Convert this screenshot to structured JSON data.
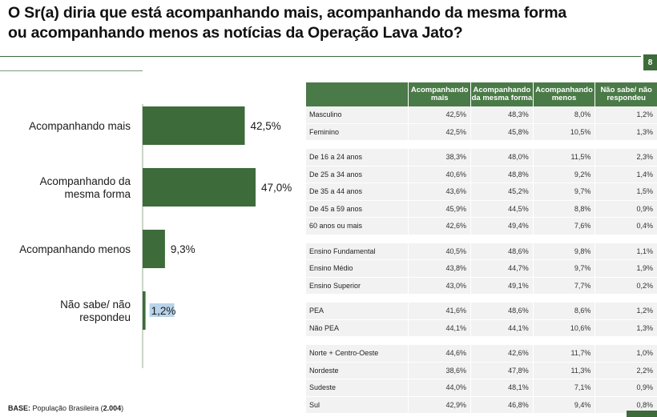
{
  "title_lines": [
    "O Sr(a) diria que está acompanhando mais, acompanhando da mesma forma",
    "ou acompanhando menos as notícias da Operação Lava Jato?"
  ],
  "page_number": "8",
  "chart_data": {
    "type": "bar",
    "orientation": "horizontal",
    "categories": [
      [
        "Acompanhando mais"
      ],
      [
        "Acompanhando da",
        "mesma forma"
      ],
      [
        "Acompanhando menos"
      ],
      [
        "Não sabe/ não",
        "respondeu"
      ]
    ],
    "values": [
      42.5,
      47.0,
      9.3,
      1.2
    ],
    "value_labels": [
      "42,5%",
      "47,0%",
      "9,3%",
      "1,2%"
    ],
    "xlim": [
      0,
      50
    ],
    "grid": false,
    "legend": "none",
    "color": "#3d6b3a"
  },
  "table": {
    "headers": [
      "Acompanhando mais",
      "Acompanhando da mesma forma",
      "Acompanhando menos",
      "Não sabe/ não respondeu"
    ],
    "groups": [
      {
        "rows": [
          {
            "label": "Masculino",
            "values": [
              "42,5%",
              "48,3%",
              "8,0%",
              "1,2%"
            ]
          },
          {
            "label": "Feminino",
            "values": [
              "42,5%",
              "45,8%",
              "10,5%",
              "1,3%"
            ]
          }
        ]
      },
      {
        "rows": [
          {
            "label": "De 16 a 24 anos",
            "values": [
              "38,3%",
              "48,0%",
              "11,5%",
              "2,3%"
            ]
          },
          {
            "label": "De 25 a 34 anos",
            "values": [
              "40,6%",
              "48,8%",
              "9,2%",
              "1,4%"
            ]
          },
          {
            "label": "De 35 a 44 anos",
            "values": [
              "43,6%",
              "45,2%",
              "9,7%",
              "1,5%"
            ]
          },
          {
            "label": "De 45 a 59 anos",
            "values": [
              "45,9%",
              "44,5%",
              "8,8%",
              "0,9%"
            ]
          },
          {
            "label": "60 anos ou mais",
            "values": [
              "42,6%",
              "49,4%",
              "7,6%",
              "0,4%"
            ]
          }
        ]
      },
      {
        "rows": [
          {
            "label": "Ensino Fundamental",
            "values": [
              "40,5%",
              "48,6%",
              "9,8%",
              "1,1%"
            ]
          },
          {
            "label": "Ensino Médio",
            "values": [
              "43,8%",
              "44,7%",
              "9,7%",
              "1,9%"
            ]
          },
          {
            "label": "Ensino Superior",
            "values": [
              "43,0%",
              "49,1%",
              "7,7%",
              "0,2%"
            ]
          }
        ]
      },
      {
        "rows": [
          {
            "label": "PEA",
            "values": [
              "41,6%",
              "48,6%",
              "8,6%",
              "1,2%"
            ]
          },
          {
            "label": "Não PEA",
            "values": [
              "44,1%",
              "44,1%",
              "10,6%",
              "1,3%"
            ]
          }
        ]
      },
      {
        "rows": [
          {
            "label": "Norte + Centro-Oeste",
            "values": [
              "44,6%",
              "42,6%",
              "11,7%",
              "1,0%"
            ]
          },
          {
            "label": "Nordeste",
            "values": [
              "38,6%",
              "47,8%",
              "11,3%",
              "2,2%"
            ]
          },
          {
            "label": "Sudeste",
            "values": [
              "44,0%",
              "48,1%",
              "7,1%",
              "0,9%"
            ]
          },
          {
            "label": "Sul",
            "values": [
              "42,9%",
              "46,8%",
              "9,4%",
              "0,8%"
            ]
          }
        ]
      }
    ]
  },
  "footer": {
    "base_label": "BASE:",
    "base_text": "População Brasileira",
    "base_n": "2.004"
  }
}
